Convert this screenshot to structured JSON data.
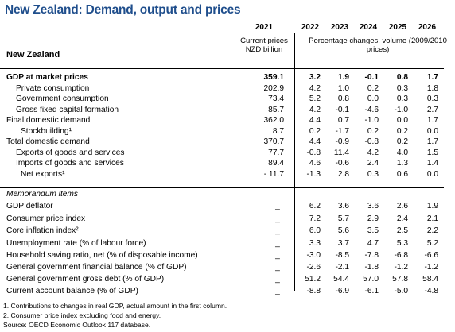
{
  "title": "New Zealand: Demand, output and prices",
  "years": [
    "2021",
    "2022",
    "2023",
    "2024",
    "2025",
    "2026"
  ],
  "country": "New Zealand",
  "units_current": "Current prices NZD billion",
  "units_pct": "Percentage changes, volume (2009/2010 prices)",
  "rows": [
    {
      "label": "GDP at market prices",
      "values": [
        "359.1",
        "3.2",
        "1.9",
        "-0.1",
        "0.8",
        "1.7"
      ]
    },
    {
      "label": "Private consumption",
      "values": [
        "202.9",
        "4.2",
        "1.0",
        "0.2",
        "0.3",
        "1.8"
      ]
    },
    {
      "label": "Government consumption",
      "values": [
        "73.4",
        "5.2",
        "0.8",
        "0.0",
        "0.3",
        "0.3"
      ]
    },
    {
      "label": "Gross fixed capital formation",
      "values": [
        "85.7",
        "4.2",
        "-0.1",
        "-4.6",
        "-1.0",
        "2.7"
      ]
    },
    {
      "label": "Final domestic demand",
      "values": [
        "362.0",
        "4.4",
        "0.7",
        "-1.0",
        "0.0",
        "1.7"
      ]
    },
    {
      "label": "Stockbuilding¹",
      "values": [
        "8.7",
        "0.2",
        "-1.7",
        "0.2",
        "0.2",
        "0.0"
      ]
    },
    {
      "label": "Total domestic demand",
      "values": [
        "370.7",
        "4.4",
        "-0.9",
        "-0.8",
        "0.2",
        "1.7"
      ]
    },
    {
      "label": "Exports of goods and services",
      "values": [
        "77.7",
        "-0.8",
        "11.4",
        "4.2",
        "4.0",
        "1.5"
      ]
    },
    {
      "label": "Imports of goods and services",
      "values": [
        "89.4",
        "4.6",
        "-0.6",
        "2.4",
        "1.3",
        "1.4"
      ]
    },
    {
      "label": "Net exports¹",
      "values": [
        "- 11.7",
        "-1.3",
        "2.8",
        "0.3",
        "0.6",
        "0.0"
      ]
    }
  ],
  "memo_title": "Memorandum items",
  "memo_rows": [
    {
      "label": "GDP deflator",
      "values": [
        "_",
        "6.2",
        "3.6",
        "3.6",
        "2.6",
        "1.9"
      ]
    },
    {
      "label": "Consumer price index",
      "values": [
        "_",
        "7.2",
        "5.7",
        "2.9",
        "2.4",
        "2.1"
      ]
    },
    {
      "label": "Core inflation index²",
      "values": [
        "_",
        "6.0",
        "5.6",
        "3.5",
        "2.5",
        "2.2"
      ]
    },
    {
      "label": "Unemployment rate (% of labour force)",
      "values": [
        "_",
        "3.3",
        "3.7",
        "4.7",
        "5.3",
        "5.2"
      ]
    },
    {
      "label": "Household saving ratio, net (% of disposable income)",
      "values": [
        "_",
        "-3.0",
        "-8.5",
        "-7.8",
        "-6.8",
        "-6.6"
      ]
    },
    {
      "label": "General government financial balance (% of GDP)",
      "values": [
        "_",
        "-2.6",
        "-2.1",
        "-1.8",
        "-1.2",
        "-1.2"
      ]
    },
    {
      "label": "General government gross debt (% of GDP)",
      "values": [
        "_",
        "51.2",
        "54.4",
        "57.0",
        "57.8",
        "58.4"
      ]
    },
    {
      "label": "Current account balance (% of GDP)",
      "values": [
        "_",
        "-8.8",
        "-6.9",
        "-6.1",
        "-5.0",
        "-4.8"
      ]
    }
  ],
  "footnotes": [
    "1. Contributions to changes in real GDP, actual amount in the first column.",
    "2. Consumer price index excluding food and energy.",
    "Source: OECD Economic Outlook 117 database."
  ]
}
